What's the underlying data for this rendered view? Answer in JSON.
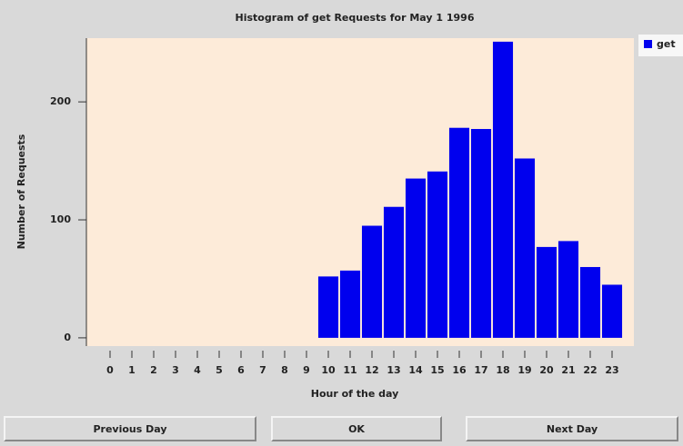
{
  "chart_data": {
    "type": "bar",
    "title": "Histogram of get Requests for May 1  1996",
    "x_label": "Hour of the day",
    "y_label": "Number of Requests",
    "categories": [
      "0",
      "1",
      "2",
      "3",
      "4",
      "5",
      "6",
      "7",
      "8",
      "9",
      "10",
      "11",
      "12",
      "13",
      "14",
      "15",
      "16",
      "17",
      "18",
      "19",
      "20",
      "21",
      "22",
      "23"
    ],
    "series": [
      {
        "name": "get",
        "color": "#0000ee",
        "values": [
          0,
          0,
          0,
          0,
          0,
          0,
          0,
          0,
          0,
          0,
          52,
          57,
          95,
          111,
          135,
          141,
          178,
          177,
          251,
          152,
          77,
          82,
          60,
          45
        ]
      }
    ],
    "ylim": [
      -7,
      254
    ],
    "yticks": [
      0,
      100,
      200
    ],
    "grid": false,
    "legend": "right"
  },
  "buttons": [
    "Previous Day",
    "OK",
    "Next Day"
  ]
}
